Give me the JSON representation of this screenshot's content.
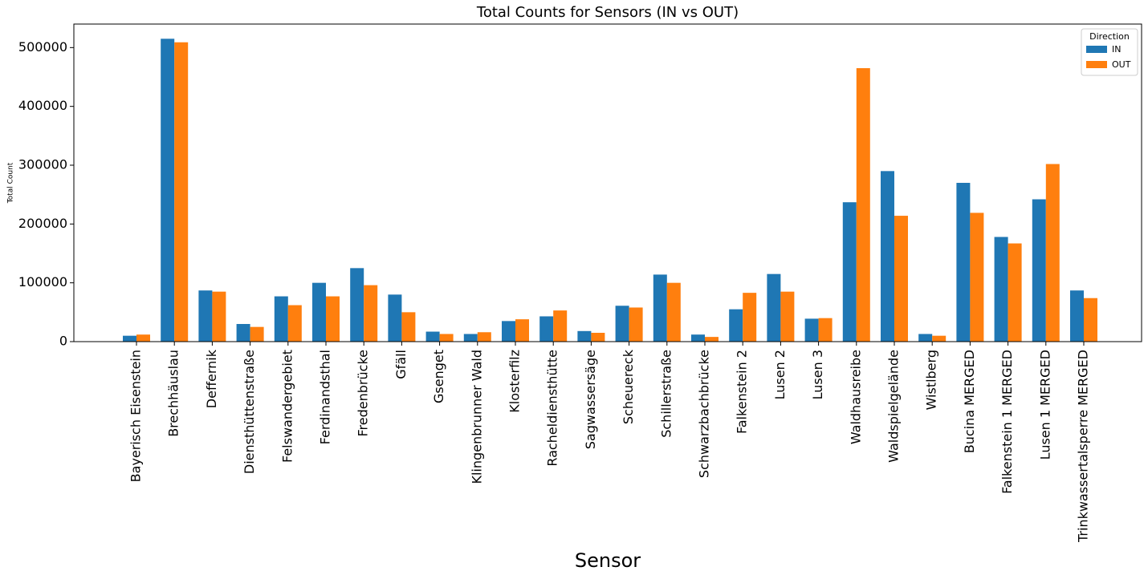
{
  "chart_data": {
    "type": "bar",
    "title": "Total Counts for Sensors (IN vs OUT)",
    "x_label": "Sensor",
    "y_label": "Total Count",
    "legend_title": "Direction",
    "legend_position": "upper right",
    "categories": [
      "Bayerisch Eisenstein",
      "Brechhäuslau",
      "Deffernik",
      "Diensthüttenstraße",
      "Felswandergebiet",
      "Ferdinandsthal",
      "Fredenbrücke",
      "Gfäll",
      "Gsenget",
      "Klingenbrunner Wald",
      "Klosterfilz",
      "Racheldiensthütte",
      "Sagwassersäge",
      "Scheuereck",
      "Schillerstraße",
      "Schwarzbachbrücke",
      "Falkenstein 2",
      "Lusen 2",
      "Lusen 3",
      "Waldhausreibe",
      "Waldspielgelände",
      "Wistlberg",
      "Bucina MERGED",
      "Falkenstein 1 MERGED",
      "Lusen 1 MERGED",
      "Trinkwassertalsperre MERGED"
    ],
    "series": [
      {
        "name": "IN",
        "color": "#1f77b4",
        "values": [
          10000,
          515000,
          87000,
          30000,
          77000,
          100000,
          125000,
          80000,
          17000,
          13000,
          35000,
          43000,
          18000,
          61000,
          114000,
          12000,
          55000,
          115000,
          39000,
          237000,
          290000,
          13000,
          270000,
          178000,
          242000,
          87000
        ]
      },
      {
        "name": "OUT",
        "color": "#ff7f0e",
        "values": [
          12000,
          509000,
          85000,
          25000,
          62000,
          77000,
          96000,
          50000,
          13000,
          16000,
          38000,
          53000,
          15000,
          58000,
          100000,
          8000,
          83000,
          85000,
          40000,
          465000,
          214000,
          10000,
          219000,
          167000,
          302000,
          74000
        ]
      }
    ],
    "ylim": [
      0,
      540000
    ],
    "yticks": [
      0,
      100000,
      200000,
      300000,
      400000,
      500000
    ]
  }
}
